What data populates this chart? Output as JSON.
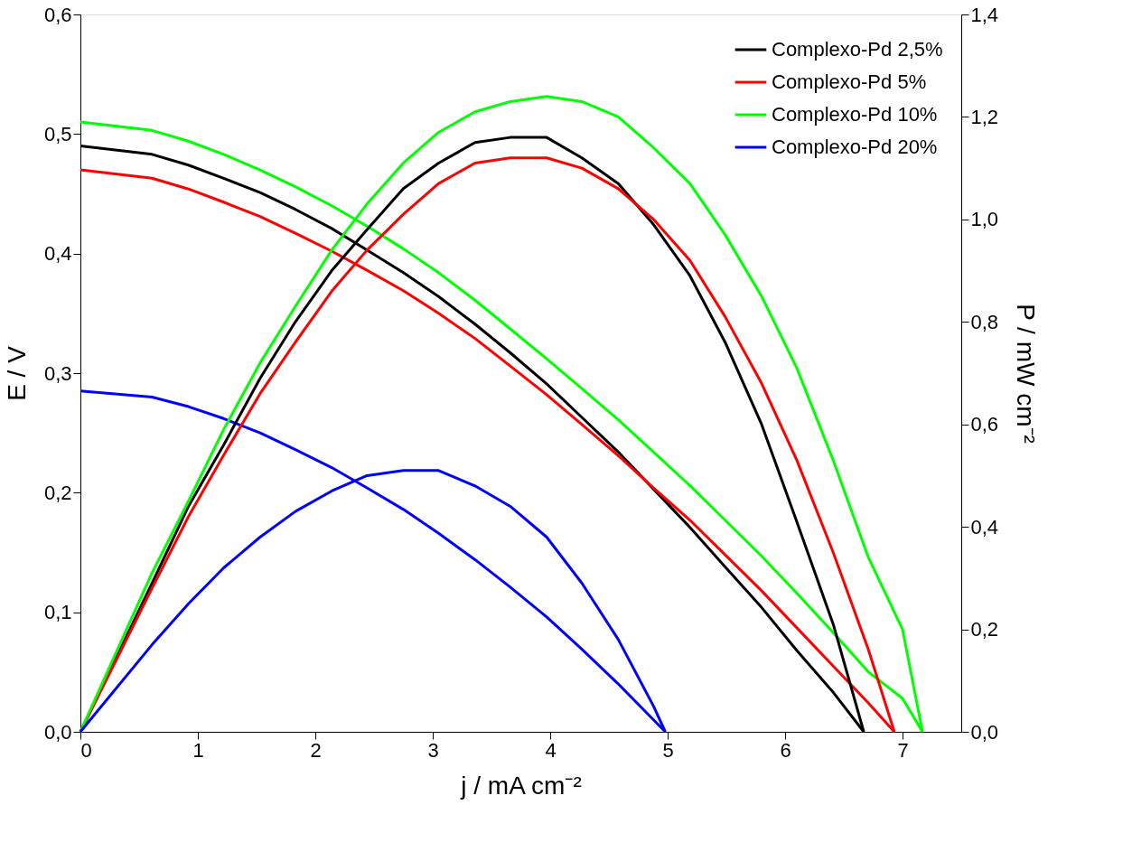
{
  "chart_data": {
    "type": "line",
    "xlabel": "j / mA cm⁻²",
    "ylabel": "E / V",
    "y2label": "P / mW cm⁻²",
    "xlim": [
      0,
      7.5
    ],
    "xticks": [
      0,
      1,
      2,
      3,
      4,
      5,
      6,
      7
    ],
    "ylim": [
      0,
      0.6
    ],
    "yticks": [
      {
        "value": 0,
        "label": "0,0"
      },
      {
        "value": 0.1,
        "label": "0,1"
      },
      {
        "value": 0.2,
        "label": "0,2"
      },
      {
        "value": 0.3,
        "label": "0,3"
      },
      {
        "value": 0.4,
        "label": "0,4"
      },
      {
        "value": 0.5,
        "label": "0,5"
      },
      {
        "value": 0.6,
        "label": "0,6"
      }
    ],
    "y2lim": [
      0,
      1.4
    ],
    "y2ticks": [
      {
        "value": 0,
        "label": "0,0"
      },
      {
        "value": 0.2,
        "label": "0,2"
      },
      {
        "value": 0.4,
        "label": "0,4"
      },
      {
        "value": 0.6,
        "label": "0,6"
      },
      {
        "value": 0.8,
        "label": "0,8"
      },
      {
        "value": 1.0,
        "label": "1,0"
      },
      {
        "value": 1.2,
        "label": "1,2"
      },
      {
        "value": 1.4,
        "label": "1,4"
      }
    ],
    "grid": false,
    "legend": "top right",
    "line_style": "solid",
    "marker": "none",
    "series": [
      {
        "name": "Complexo-Pd 2,5%",
        "color": "#000000",
        "x": [
          0,
          0.61,
          0.92,
          1.22,
          1.53,
          1.83,
          2.14,
          2.44,
          2.75,
          3.05,
          3.36,
          3.66,
          3.97,
          4.27,
          4.58,
          4.88,
          5.19,
          5.49,
          5.8,
          6.1,
          6.41,
          6.67
        ],
        "values": [
          0.49,
          0.483,
          0.474,
          0.463,
          0.451,
          0.437,
          0.421,
          0.403,
          0.384,
          0.364,
          0.341,
          0.317,
          0.291,
          0.263,
          0.234,
          0.203,
          0.171,
          0.138,
          0.104,
          0.068,
          0.033,
          0
        ]
      },
      {
        "name": "Complexo-Pd 5%",
        "color": "#ff0000",
        "x": [
          0,
          0.61,
          0.92,
          1.22,
          1.53,
          1.83,
          2.14,
          2.44,
          2.75,
          3.05,
          3.36,
          3.66,
          3.97,
          4.27,
          4.58,
          4.88,
          5.19,
          5.49,
          5.8,
          6.1,
          6.41,
          6.71,
          6.93
        ],
        "values": [
          0.47,
          0.463,
          0.454,
          0.443,
          0.431,
          0.417,
          0.402,
          0.386,
          0.369,
          0.35,
          0.329,
          0.306,
          0.282,
          0.257,
          0.231,
          0.204,
          0.177,
          0.148,
          0.118,
          0.087,
          0.055,
          0.024,
          0
        ]
      },
      {
        "name": "Complexo-Pd 10%",
        "color": "#00ff00",
        "x": [
          0,
          0.61,
          0.92,
          1.22,
          1.53,
          1.83,
          2.14,
          2.44,
          2.75,
          3.05,
          3.36,
          3.66,
          3.97,
          4.27,
          4.58,
          4.88,
          5.19,
          5.49,
          5.8,
          6.1,
          6.41,
          6.71,
          7.0,
          7.17
        ],
        "values": [
          0.51,
          0.503,
          0.494,
          0.483,
          0.47,
          0.456,
          0.44,
          0.423,
          0.404,
          0.384,
          0.361,
          0.337,
          0.312,
          0.287,
          0.261,
          0.234,
          0.206,
          0.177,
          0.147,
          0.116,
          0.083,
          0.05,
          0.028,
          0
        ]
      },
      {
        "name": "Complexo-Pd 20%",
        "color": "#0000ff",
        "x": [
          0,
          0.61,
          0.92,
          1.22,
          1.53,
          1.83,
          2.14,
          2.44,
          2.75,
          3.05,
          3.36,
          3.66,
          3.97,
          4.27,
          4.58,
          4.88,
          4.98
        ],
        "values": [
          0.285,
          0.28,
          0.272,
          0.262,
          0.25,
          0.236,
          0.221,
          0.204,
          0.186,
          0.166,
          0.144,
          0.121,
          0.096,
          0.069,
          0.04,
          0.01,
          0
        ]
      },
      {
        "color": "#000000",
        "axis": "y2",
        "x": [
          0,
          0.61,
          0.92,
          1.22,
          1.53,
          1.83,
          2.14,
          2.44,
          2.75,
          3.05,
          3.36,
          3.66,
          3.97,
          4.27,
          4.58,
          4.88,
          5.19,
          5.49,
          5.8,
          6.1,
          6.41,
          6.67
        ],
        "values": [
          0,
          0.29,
          0.44,
          0.56,
          0.69,
          0.8,
          0.9,
          0.98,
          1.06,
          1.11,
          1.15,
          1.16,
          1.16,
          1.12,
          1.07,
          0.99,
          0.89,
          0.76,
          0.6,
          0.41,
          0.21,
          0
        ]
      },
      {
        "color": "#ff0000",
        "axis": "y2",
        "x": [
          0,
          0.61,
          0.92,
          1.22,
          1.53,
          1.83,
          2.14,
          2.44,
          2.75,
          3.05,
          3.36,
          3.66,
          3.97,
          4.27,
          4.58,
          4.88,
          5.19,
          5.49,
          5.8,
          6.1,
          6.41,
          6.71,
          6.93
        ],
        "values": [
          0,
          0.28,
          0.42,
          0.54,
          0.66,
          0.76,
          0.86,
          0.94,
          1.01,
          1.07,
          1.11,
          1.12,
          1.12,
          1.1,
          1.06,
          1.0,
          0.92,
          0.81,
          0.68,
          0.53,
          0.35,
          0.16,
          0
        ]
      },
      {
        "color": "#00ff00",
        "axis": "y2",
        "x": [
          0,
          0.61,
          0.92,
          1.22,
          1.53,
          1.83,
          2.14,
          2.44,
          2.75,
          3.05,
          3.36,
          3.66,
          3.97,
          4.27,
          4.58,
          4.88,
          5.19,
          5.49,
          5.8,
          6.1,
          6.41,
          6.71,
          7.0,
          7.17
        ],
        "values": [
          0,
          0.31,
          0.45,
          0.59,
          0.72,
          0.83,
          0.94,
          1.03,
          1.11,
          1.17,
          1.21,
          1.23,
          1.24,
          1.23,
          1.2,
          1.14,
          1.07,
          0.97,
          0.85,
          0.71,
          0.53,
          0.34,
          0.2,
          0
        ]
      },
      {
        "color": "#0000ff",
        "axis": "y2",
        "x": [
          0,
          0.61,
          0.92,
          1.22,
          1.53,
          1.83,
          2.14,
          2.44,
          2.75,
          3.05,
          3.36,
          3.66,
          3.97,
          4.27,
          4.58,
          4.88,
          4.98
        ],
        "values": [
          0,
          0.17,
          0.25,
          0.32,
          0.38,
          0.43,
          0.47,
          0.5,
          0.51,
          0.51,
          0.48,
          0.44,
          0.38,
          0.29,
          0.18,
          0.05,
          0
        ]
      }
    ]
  }
}
